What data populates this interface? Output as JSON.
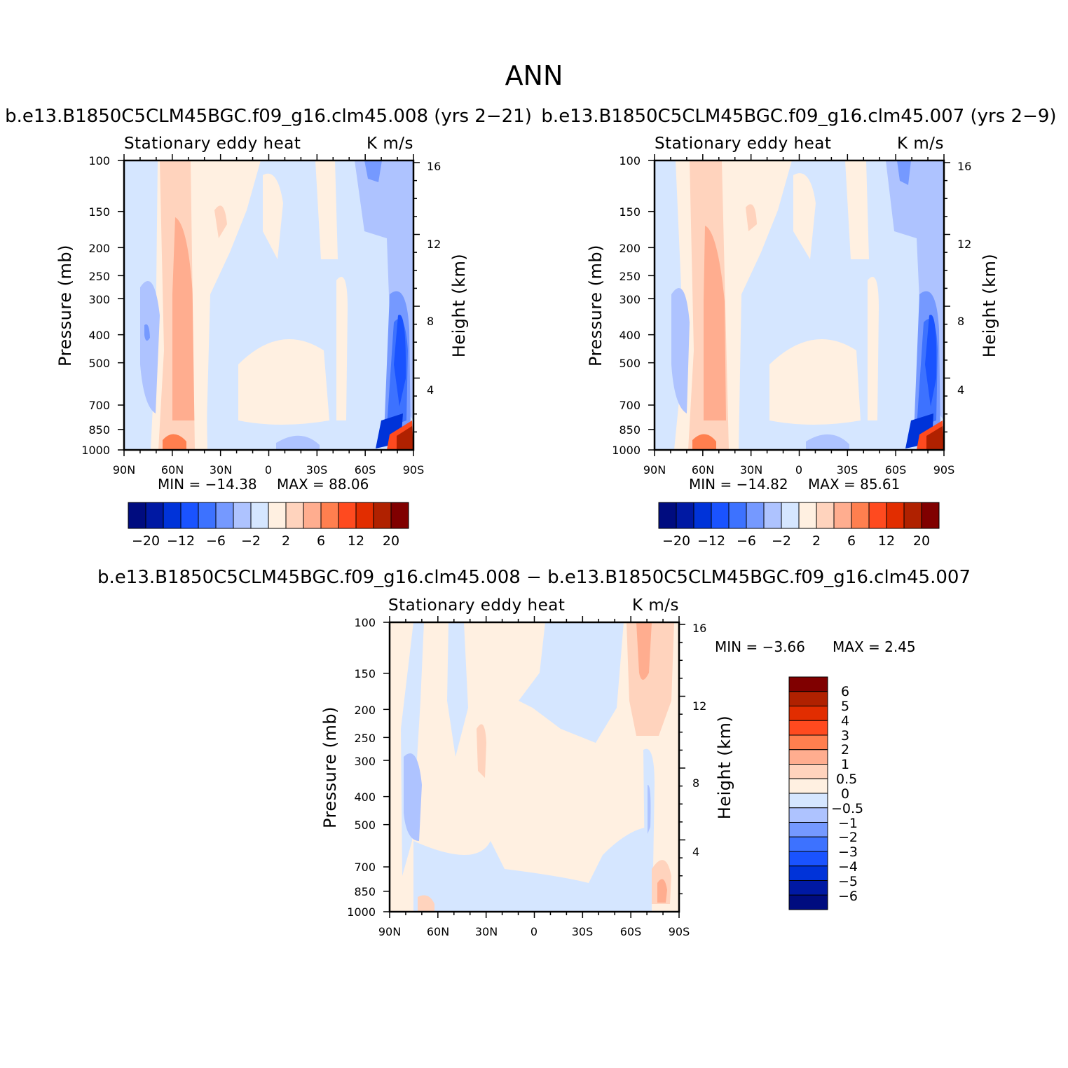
{
  "figure": {
    "title": "ANN"
  },
  "palette": {
    "negative_dark_to_light": [
      "#000c7f",
      "#0019a3",
      "#0033d9",
      "#1a53ff",
      "#3d72ff",
      "#7599ff",
      "#aec3ff",
      "#d5e6ff"
    ],
    "positive_light_to_dark": [
      "#fff0e1",
      "#ffd3bd",
      "#ffad8f",
      "#ff7f4f",
      "#ff4a1f",
      "#e22d00",
      "#b02100",
      "#800000"
    ]
  },
  "chart_data": [
    {
      "type": "heatmap",
      "panel": "top-left",
      "title": "b.e13.B1850C5CLM45BGC.f09_g16.clm45.008 (yrs 2−21)",
      "subtitle_left": "Stationary eddy heat",
      "subtitle_right": "K m/s",
      "xlabel": "",
      "ylabel": "Pressure (mb)",
      "y2label": "Height (km)",
      "x_ticks": [
        "90N",
        "60N",
        "30N",
        "0",
        "30S",
        "60S",
        "90S"
      ],
      "x_tick_values": [
        90,
        60,
        30,
        0,
        -30,
        -60,
        -90
      ],
      "y_ticks": [
        "100",
        "150",
        "200",
        "250",
        "300",
        "400",
        "500",
        "700",
        "850",
        "1000"
      ],
      "y_tick_values": [
        100,
        150,
        200,
        250,
        300,
        400,
        500,
        700,
        850,
        1000
      ],
      "y_log": true,
      "y2_ticks": [
        "4",
        "8",
        "12",
        "16"
      ],
      "y2_tick_values": [
        4,
        8,
        12,
        16
      ],
      "min_label": "MIN = −14.38",
      "max_label": "MAX = 88.06",
      "min": -14.38,
      "max": 88.06,
      "colorbar_orientation": "horizontal",
      "colorbar_labels": [
        "−20",
        "−12",
        "−6",
        "−2",
        "2",
        "6",
        "12",
        "20"
      ],
      "contour_levels": [
        -20,
        -16,
        -12,
        -8,
        -6,
        -4,
        -2,
        0,
        2,
        4,
        6,
        8,
        12,
        16,
        20
      ]
    },
    {
      "type": "heatmap",
      "panel": "top-right",
      "title": "b.e13.B1850C5CLM45BGC.f09_g16.clm45.007 (yrs 2−9)",
      "subtitle_left": "Stationary eddy heat",
      "subtitle_right": "K m/s",
      "xlabel": "",
      "ylabel": "Pressure (mb)",
      "y2label": "Height (km)",
      "x_ticks": [
        "90N",
        "60N",
        "30N",
        "0",
        "30S",
        "60S",
        "90S"
      ],
      "x_tick_values": [
        90,
        60,
        30,
        0,
        -30,
        -60,
        -90
      ],
      "y_ticks": [
        "100",
        "150",
        "200",
        "250",
        "300",
        "400",
        "500",
        "700",
        "850",
        "1000"
      ],
      "y_tick_values": [
        100,
        150,
        200,
        250,
        300,
        400,
        500,
        700,
        850,
        1000
      ],
      "y_log": true,
      "y2_ticks": [
        "4",
        "8",
        "12",
        "16"
      ],
      "y2_tick_values": [
        4,
        8,
        12,
        16
      ],
      "min_label": "MIN = −14.82",
      "max_label": "MAX = 85.61",
      "min": -14.82,
      "max": 85.61,
      "colorbar_orientation": "horizontal",
      "colorbar_labels": [
        "−20",
        "−12",
        "−6",
        "−2",
        "2",
        "6",
        "12",
        "20"
      ],
      "contour_levels": [
        -20,
        -16,
        -12,
        -8,
        -6,
        -4,
        -2,
        0,
        2,
        4,
        6,
        8,
        12,
        16,
        20
      ]
    },
    {
      "type": "heatmap",
      "panel": "bottom",
      "title": "b.e13.B1850C5CLM45BGC.f09_g16.clm45.008 − b.e13.B1850C5CLM45BGC.f09_g16.clm45.007",
      "subtitle_left": "Stationary eddy heat",
      "subtitle_right": "K m/s",
      "xlabel": "",
      "ylabel": "Pressure (mb)",
      "y2label": "Height (km)",
      "x_ticks": [
        "90N",
        "60N",
        "30N",
        "0",
        "30S",
        "60S",
        "90S"
      ],
      "x_tick_values": [
        90,
        60,
        30,
        0,
        -30,
        -60,
        -90
      ],
      "y_ticks": [
        "100",
        "150",
        "200",
        "250",
        "300",
        "400",
        "500",
        "700",
        "850",
        "1000"
      ],
      "y_tick_values": [
        100,
        150,
        200,
        250,
        300,
        400,
        500,
        700,
        850,
        1000
      ],
      "y_log": true,
      "y2_ticks": [
        "4",
        "8",
        "12",
        "16"
      ],
      "y2_tick_values": [
        4,
        8,
        12,
        16
      ],
      "min_label": "MIN = −3.66",
      "max_label": "MAX = 2.45",
      "min": -3.66,
      "max": 2.45,
      "colorbar_orientation": "vertical",
      "colorbar_labels": [
        "6",
        "5",
        "4",
        "3",
        "2",
        "1",
        "0.5",
        "0",
        "−0.5",
        "−1",
        "−2",
        "−3",
        "−4",
        "−5",
        "−6"
      ],
      "contour_levels": [
        -6,
        -5,
        -4,
        -3,
        -2,
        -1,
        -0.5,
        0,
        0.5,
        1,
        2,
        3,
        4,
        5,
        6
      ]
    }
  ]
}
